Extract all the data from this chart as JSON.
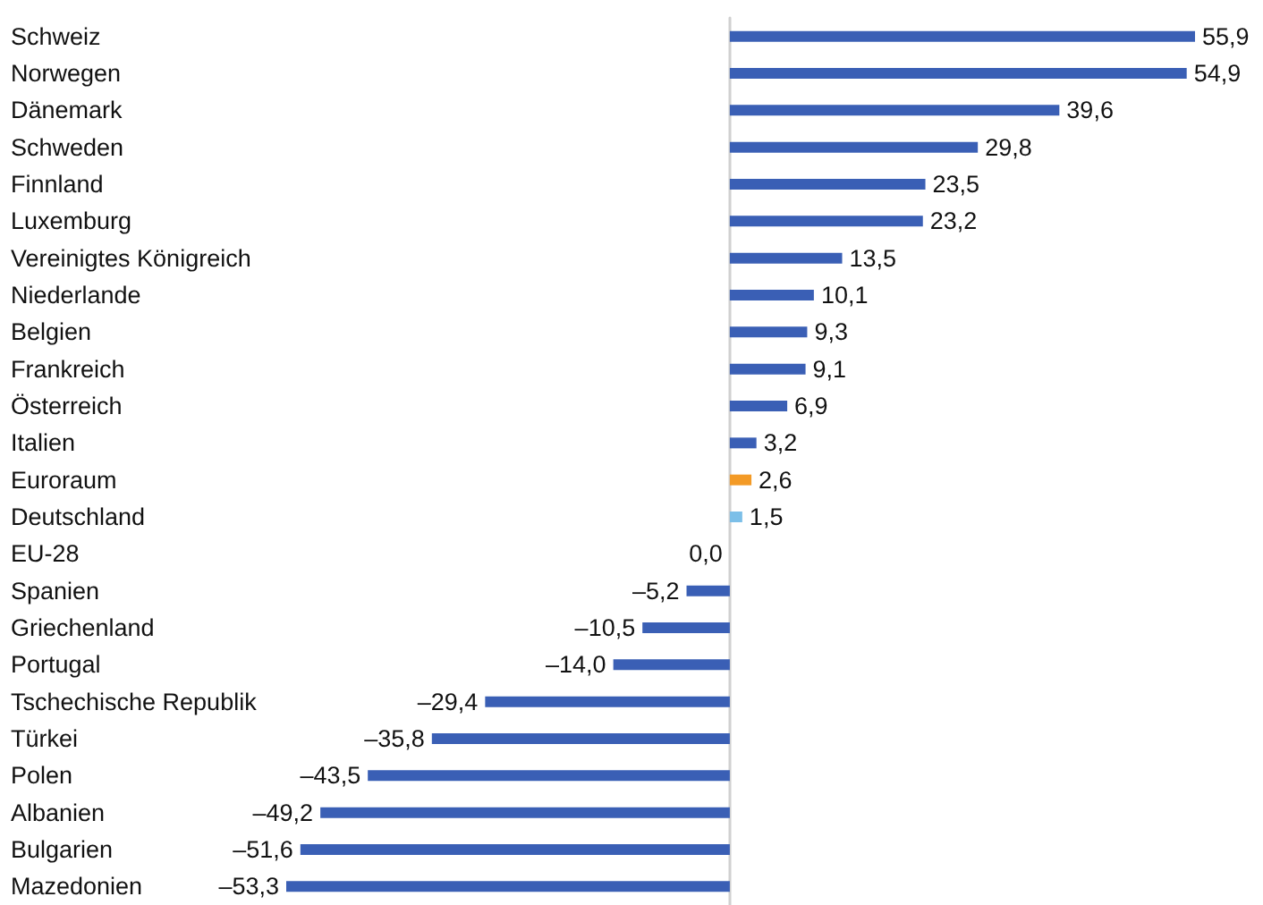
{
  "chart_data": {
    "type": "bar",
    "orientation": "horizontal",
    "categories": [
      "Schweiz",
      "Norwegen",
      "Dänemark",
      "Schweden",
      "Finnland",
      "Luxemburg",
      "Vereinigtes Königreich",
      "Niederlande",
      "Belgien",
      "Frankreich",
      "Österreich",
      "Italien",
      "Euroraum",
      "Deutschland",
      "EU-28",
      "Spanien",
      "Griechenland",
      "Portugal",
      "Tschechische Republik",
      "Türkei",
      "Polen",
      "Albanien",
      "Bulgarien",
      "Mazedonien"
    ],
    "values": [
      55.9,
      54.9,
      39.6,
      29.8,
      23.5,
      23.2,
      13.5,
      10.1,
      9.3,
      9.1,
      6.9,
      3.2,
      2.6,
      1.5,
      0.0,
      -5.2,
      -10.5,
      -14.0,
      -29.4,
      -35.8,
      -43.5,
      -49.2,
      -51.6,
      -53.3
    ],
    "value_labels": [
      "55,9",
      "54,9",
      "39,6",
      "29,8",
      "23,5",
      "23,2",
      "13,5",
      "10,1",
      "9,3",
      "9,1",
      "6,9",
      "3,2",
      "2,6",
      "1,5",
      "0,0",
      "–5,2",
      "–10,5",
      "–14,0",
      "–29,4",
      "–35,8",
      "–43,5",
      "–49,2",
      "–51,6",
      "–53,3"
    ],
    "colors": [
      "#3a5fb5",
      "#3a5fb5",
      "#3a5fb5",
      "#3a5fb5",
      "#3a5fb5",
      "#3a5fb5",
      "#3a5fb5",
      "#3a5fb5",
      "#3a5fb5",
      "#3a5fb5",
      "#3a5fb5",
      "#3a5fb5",
      "#f39a26",
      "#7cbfe8",
      "#3a5fb5",
      "#3a5fb5",
      "#3a5fb5",
      "#3a5fb5",
      "#3a5fb5",
      "#3a5fb5",
      "#3a5fb5",
      "#3a5fb5",
      "#3a5fb5",
      "#3a5fb5"
    ]
  }
}
